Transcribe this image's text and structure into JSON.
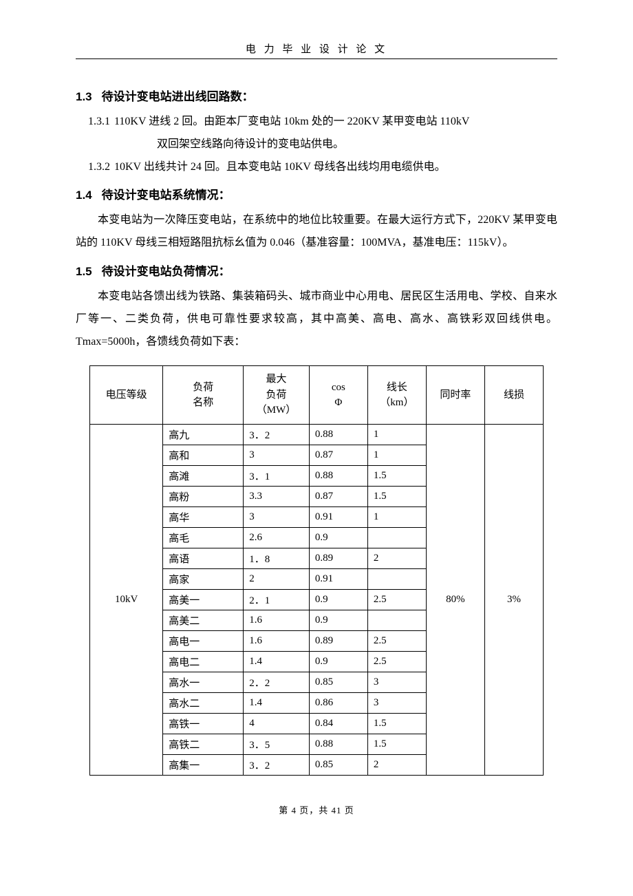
{
  "header": {
    "title": "电 力 毕 业 设 计 论 文"
  },
  "section13": {
    "num": "1.3",
    "title": "待设计变电站进出线回路数：",
    "items": [
      {
        "lbl": "1.3.1",
        "text": "110KV 进线 2 回。由距本厂变电站 10km 处的一 220KV 某甲变电站 110kV",
        "cont": "双回架空线路向待设计的变电站供电。"
      },
      {
        "lbl": "1.3.2",
        "text": "10KV 出线共计 24 回。且本变电站 10KV 母线各出线均用电缆供电。",
        "cont": ""
      }
    ]
  },
  "section14": {
    "num": "1.4",
    "title": "待设计变电站系统情况：",
    "para": "本变电站为一次降压变电站，在系统中的地位比较重要。在最大运行方式下，220KV 某甲变电站的 110KV 母线三相短路阻抗标幺值为 0.046（基准容量：100MVA，基准电压：115kV）。"
  },
  "section15": {
    "num": "1.5",
    "title": "待设计变电站负荷情况：",
    "para": "本变电站各馈出线为铁路、集装箱码头、城市商业中心用电、居民区生活用电、学校、自来水厂等一、二类负荷，供电可靠性要求较高，其中高美、高电、高水、高铁彩双回线供电。Tmax=5000h，各馈线负荷如下表："
  },
  "table": {
    "columns": [
      "电压等级",
      "负荷\n名称",
      "最大\n负荷\n（MW）",
      "cos\nΦ",
      "线长\n（km）",
      "同时率",
      "线损"
    ],
    "col_widths": [
      "100px",
      "110px",
      "90px",
      "80px",
      "80px",
      "80px",
      "80px"
    ],
    "voltage": "10kV",
    "concurrency": "80%",
    "loss": "3%",
    "rows": [
      {
        "name": "高九",
        "mw": "3．2",
        "cos": "0.88",
        "len": "1"
      },
      {
        "name": "高和",
        "mw": "3",
        "cos": "0.87",
        "len": "1"
      },
      {
        "name": "高滩",
        "mw": "3．1",
        "cos": "0.88",
        "len": "1.5"
      },
      {
        "name": "高粉",
        "mw": "3.3",
        "cos": "0.87",
        "len": "1.5"
      },
      {
        "name": "高华",
        "mw": "3",
        "cos": "0.91",
        "len": "1"
      },
      {
        "name": "高毛",
        "mw": "2.6",
        "cos": "0.9",
        "len": ""
      },
      {
        "name": "高语",
        "mw": "1．8",
        "cos": "0.89",
        "len": "2"
      },
      {
        "name": "高家",
        "mw": "2",
        "cos": "0.91",
        "len": ""
      },
      {
        "name": "高美一",
        "mw": "2．1",
        "cos": "0.9",
        "len": "2.5"
      },
      {
        "name": "高美二",
        "mw": "1.6",
        "cos": "0.9",
        "len": ""
      },
      {
        "name": "高电一",
        "mw": "1.6",
        "cos": "0.89",
        "len": "2.5"
      },
      {
        "name": "高电二",
        "mw": "1.4",
        "cos": "0.9",
        "len": "2.5"
      },
      {
        "name": "高水一",
        "mw": "2．2",
        "cos": "0.85",
        "len": "3"
      },
      {
        "name": "高水二",
        "mw": "1.4",
        "cos": "0.86",
        "len": "3"
      },
      {
        "name": "高铁一",
        "mw": "4",
        "cos": "0.84",
        "len": "1.5"
      },
      {
        "name": "高铁二",
        "mw": "3．5",
        "cos": "0.88",
        "len": "1.5"
      },
      {
        "name": "高集一",
        "mw": "3．2",
        "cos": "0.85",
        "len": "2"
      }
    ]
  },
  "footer": {
    "text": "第 4 页，共 41 页"
  },
  "colors": {
    "text": "#000000",
    "bg": "#ffffff",
    "border": "#000000"
  },
  "fonts": {
    "body": "SimSun",
    "heading": "SimHei",
    "body_size": 16,
    "heading_size": 17,
    "header_size": 15,
    "cell_size": 15
  }
}
